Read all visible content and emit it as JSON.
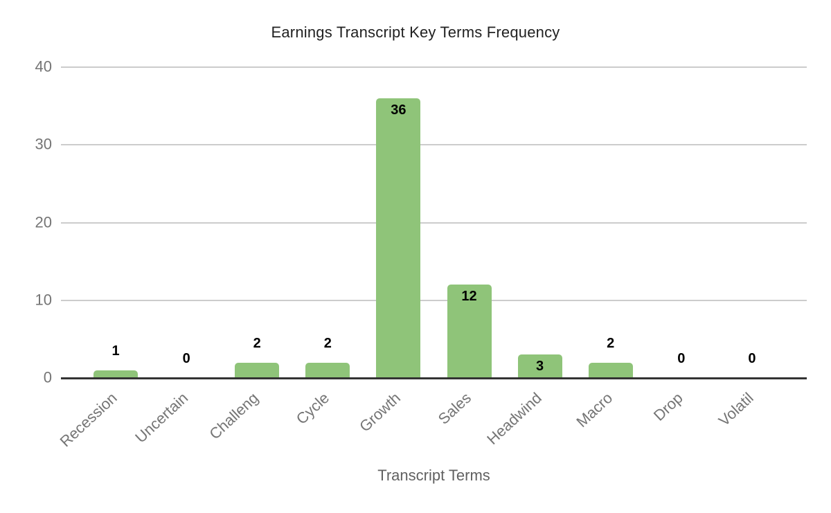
{
  "chart_data": {
    "type": "bar",
    "title": "Earnings Transcript Key Terms Frequency",
    "xlabel": "Transcript Terms",
    "ylabel": "",
    "categories": [
      "Recession",
      "Uncertain",
      "Challeng",
      "Cycle",
      "Growth",
      "Sales",
      "Headwind",
      "Macro",
      "Drop",
      "Volatil"
    ],
    "values": [
      1,
      0,
      2,
      2,
      36,
      12,
      3,
      2,
      0,
      0
    ],
    "ylim": [
      0,
      40
    ],
    "yticks": [
      0,
      10,
      20,
      30,
      40
    ],
    "grid": true,
    "legend": "none",
    "annotations_shown": true,
    "colors": {
      "bar": "#8FC479",
      "annotation": "#000000",
      "tick_label": "#757575",
      "gridline": "#CCCCCC",
      "baseline": "#333333",
      "title": "#212121",
      "axis_title": "#616161",
      "background": "#FFFFFF"
    }
  }
}
